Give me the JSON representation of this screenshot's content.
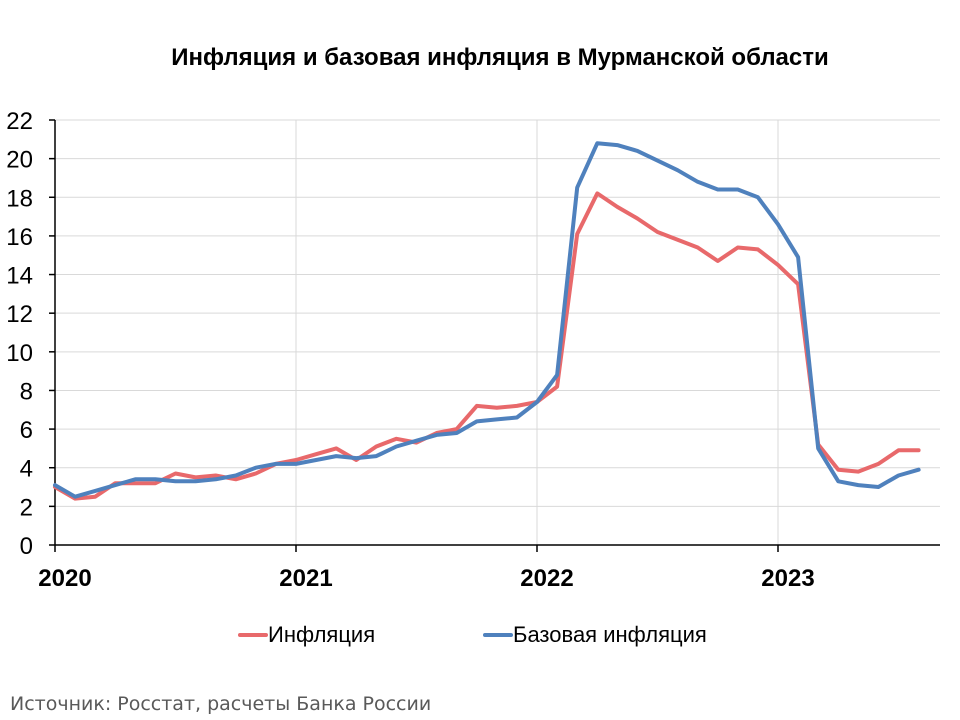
{
  "source_note": "Источник: Росстат, расчеты Банка России",
  "chart_data": {
    "type": "line",
    "title": "Инфляция и базовая инфляция в Мурманской области",
    "xlabel": "",
    "ylabel": "",
    "ylim": [
      0,
      22
    ],
    "yticks": [
      "0",
      "2",
      "4",
      "6",
      "8",
      "10",
      "12",
      "14",
      "16",
      "18",
      "20",
      "22"
    ],
    "xlim": [
      "2020-01",
      "2023-12"
    ],
    "xtick_labels": [
      "2020",
      "2021",
      "2022",
      "2023"
    ],
    "x": [
      "2020-01",
      "2020-02",
      "2020-03",
      "2020-04",
      "2020-05",
      "2020-06",
      "2020-07",
      "2020-08",
      "2020-09",
      "2020-10",
      "2020-11",
      "2020-12",
      "2021-01",
      "2021-02",
      "2021-03",
      "2021-04",
      "2021-05",
      "2021-06",
      "2021-07",
      "2021-08",
      "2021-09",
      "2021-10",
      "2021-11",
      "2021-12",
      "2022-01",
      "2022-02",
      "2022-03",
      "2022-04",
      "2022-05",
      "2022-06",
      "2022-07",
      "2022-08",
      "2022-09",
      "2022-10",
      "2022-11",
      "2022-12",
      "2023-01",
      "2023-02",
      "2023-03",
      "2023-04",
      "2023-05",
      "2023-06",
      "2023-07",
      "2023-08"
    ],
    "grid": true,
    "legend_position": "bottom",
    "series": [
      {
        "name": "Инфляция",
        "color": "#e8696b",
        "values": [
          3.0,
          2.4,
          2.5,
          3.2,
          3.2,
          3.2,
          3.7,
          3.5,
          3.6,
          3.4,
          3.7,
          4.2,
          4.4,
          4.7,
          5.0,
          4.4,
          5.1,
          5.5,
          5.3,
          5.8,
          6.0,
          7.2,
          7.1,
          7.2,
          7.4,
          8.2,
          16.1,
          18.2,
          17.5,
          16.9,
          16.2,
          15.8,
          15.4,
          14.7,
          15.4,
          15.3,
          14.5,
          13.5,
          5.2,
          3.9,
          3.8,
          4.2,
          4.9,
          4.9
        ]
      },
      {
        "name": "Базовая инфляция",
        "color": "#4f81bd",
        "values": [
          3.1,
          2.5,
          2.8,
          3.1,
          3.4,
          3.4,
          3.3,
          3.3,
          3.4,
          3.6,
          4.0,
          4.2,
          4.2,
          4.4,
          4.6,
          4.5,
          4.6,
          5.1,
          5.4,
          5.7,
          5.8,
          6.4,
          6.5,
          6.6,
          7.4,
          8.8,
          18.5,
          20.8,
          20.7,
          20.4,
          19.9,
          19.4,
          18.8,
          18.4,
          18.4,
          18.0,
          16.6,
          14.9,
          5.0,
          3.3,
          3.1,
          3.0,
          3.6,
          3.9
        ]
      }
    ]
  }
}
